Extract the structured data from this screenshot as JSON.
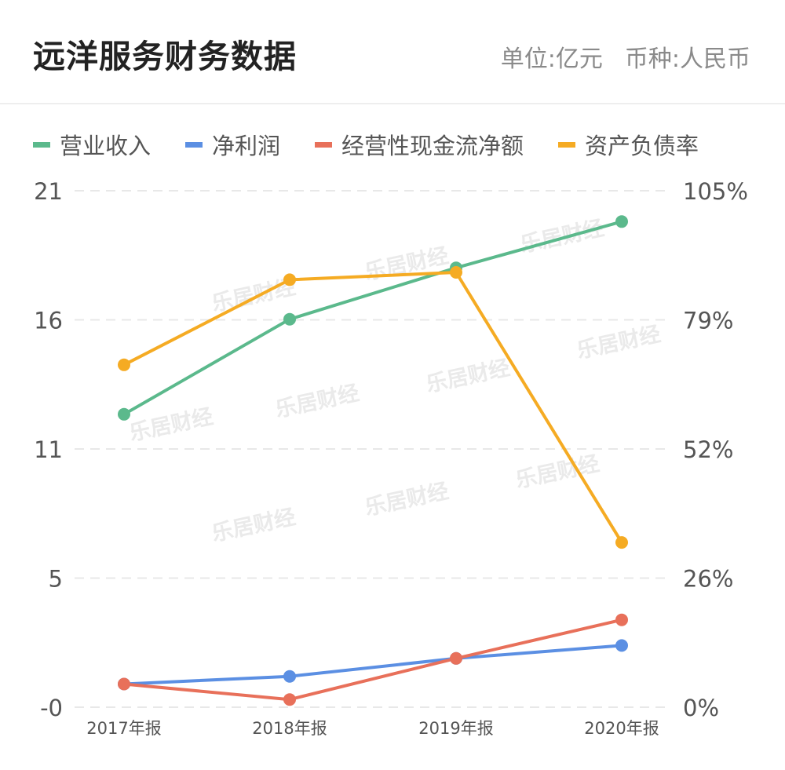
{
  "header": {
    "title": "远洋服务财务数据",
    "unit": "单位:亿元",
    "currency": "币种:人民币"
  },
  "chart_data": {
    "type": "line",
    "categories": [
      "2017年报",
      "2018年报",
      "2019年报",
      "2020年报"
    ],
    "left_axis": {
      "ticks": [
        "21",
        "16",
        "11",
        "5",
        "-0"
      ],
      "range": [
        0,
        20.1
      ]
    },
    "right_axis": {
      "ticks": [
        "105%",
        "79%",
        "52%",
        "26%",
        "0%"
      ],
      "range": [
        0,
        105
      ]
    },
    "legend_position": "top",
    "grid": "dashed-horizontal",
    "watermark": "乐居财经",
    "series": [
      {
        "name": "营业收入",
        "color": "#5bb98c",
        "axis": "left",
        "values": [
          11.4,
          15.1,
          17.1,
          18.9
        ]
      },
      {
        "name": "净利润",
        "color": "#5b8fe3",
        "axis": "left",
        "values": [
          0.9,
          1.2,
          1.9,
          2.4
        ]
      },
      {
        "name": "经营性现金流净额",
        "color": "#e8705a",
        "axis": "left",
        "values": [
          0.9,
          0.3,
          1.9,
          3.4
        ]
      },
      {
        "name": "资产负债率",
        "color": "#f5ab23",
        "axis": "right",
        "values": [
          69.6,
          86.9,
          88.4,
          33.5
        ]
      }
    ]
  }
}
